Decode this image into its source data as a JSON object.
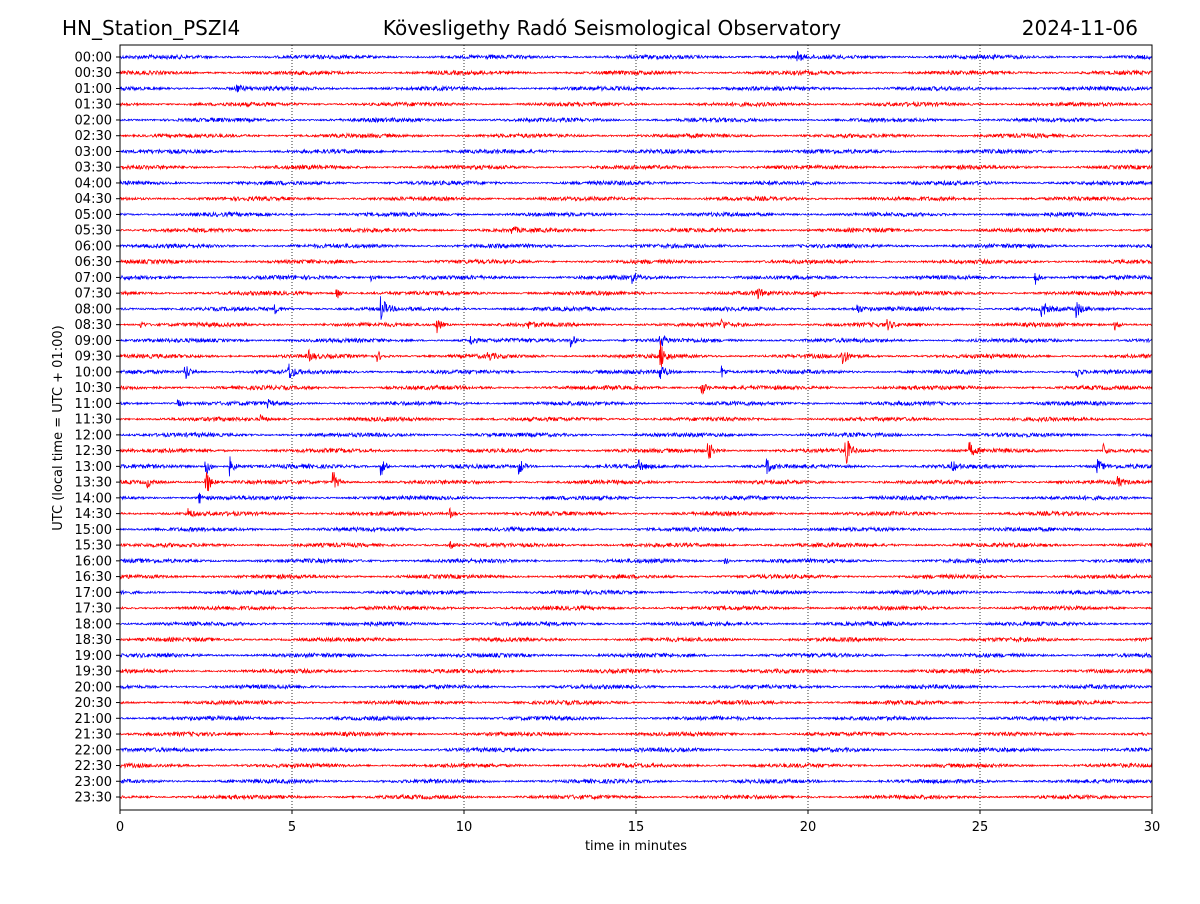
{
  "chart_data": {
    "type": "line",
    "title_left": "HN_Station_PSZI4",
    "title": "Kövesligethy Radó Seismological Observatory",
    "title_right": "2024-11-06",
    "xlabel": "time in minutes",
    "ylabel": "UTC (local time = UTC + 01:00)",
    "xlim": [
      0,
      30
    ],
    "xticks": [
      0,
      5,
      10,
      15,
      20,
      25,
      30
    ],
    "grid": "vertical dotted at 5-minute intervals",
    "row_labels": [
      "00:00",
      "00:30",
      "01:00",
      "01:30",
      "02:00",
      "02:30",
      "03:00",
      "03:30",
      "04:00",
      "04:30",
      "05:00",
      "05:30",
      "06:00",
      "06:30",
      "07:00",
      "07:30",
      "08:00",
      "08:30",
      "09:00",
      "09:30",
      "10:00",
      "10:30",
      "11:00",
      "11:30",
      "12:00",
      "12:30",
      "13:00",
      "13:30",
      "14:00",
      "14:30",
      "15:00",
      "15:30",
      "16:00",
      "16:30",
      "17:00",
      "17:30",
      "18:00",
      "18:30",
      "19:00",
      "19:30",
      "20:00",
      "20:30",
      "21:00",
      "21:30",
      "22:00",
      "22:30",
      "23:00",
      "23:30"
    ],
    "series_colors": [
      "#0000ff",
      "#ff0000"
    ],
    "noise_level": 0.09,
    "events": [
      {
        "row": 0,
        "minute": 19.7,
        "amp": 0.3
      },
      {
        "row": 2,
        "minute": 3.4,
        "amp": 0.25
      },
      {
        "row": 11,
        "minute": 11.4,
        "amp": 0.25
      },
      {
        "row": 14,
        "minute": 26.6,
        "amp": 0.5
      },
      {
        "row": 14,
        "minute": 14.9,
        "amp": 0.3
      },
      {
        "row": 14,
        "minute": 7.3,
        "amp": 0.25
      },
      {
        "row": 15,
        "minute": 6.3,
        "amp": 0.4
      },
      {
        "row": 15,
        "minute": 18.5,
        "amp": 0.4
      },
      {
        "row": 15,
        "minute": 20.2,
        "amp": 0.3
      },
      {
        "row": 15,
        "minute": 28.8,
        "amp": 0.3
      },
      {
        "row": 16,
        "minute": 7.6,
        "amp": 0.8
      },
      {
        "row": 16,
        "minute": 26.8,
        "amp": 0.6
      },
      {
        "row": 16,
        "minute": 27.8,
        "amp": 0.5
      },
      {
        "row": 16,
        "minute": 21.4,
        "amp": 0.4
      },
      {
        "row": 16,
        "minute": 4.5,
        "amp": 0.25
      },
      {
        "row": 17,
        "minute": 9.2,
        "amp": 0.6
      },
      {
        "row": 17,
        "minute": 17.5,
        "amp": 0.3
      },
      {
        "row": 17,
        "minute": 22.3,
        "amp": 0.3
      },
      {
        "row": 17,
        "minute": 28.9,
        "amp": 0.4
      },
      {
        "row": 17,
        "minute": 11.9,
        "amp": 0.2
      },
      {
        "row": 17,
        "minute": 0.6,
        "amp": 0.25
      },
      {
        "row": 18,
        "minute": 13.1,
        "amp": 0.5
      },
      {
        "row": 18,
        "minute": 10.2,
        "amp": 0.3
      },
      {
        "row": 18,
        "minute": 15.7,
        "amp": 0.5
      },
      {
        "row": 19,
        "minute": 5.5,
        "amp": 0.3
      },
      {
        "row": 19,
        "minute": 7.5,
        "amp": 0.3
      },
      {
        "row": 19,
        "minute": 10.7,
        "amp": 0.3
      },
      {
        "row": 19,
        "minute": 15.7,
        "amp": 1.0
      },
      {
        "row": 19,
        "minute": 21.0,
        "amp": 0.6
      },
      {
        "row": 20,
        "minute": 1.9,
        "amp": 0.6
      },
      {
        "row": 20,
        "minute": 4.9,
        "amp": 0.6
      },
      {
        "row": 20,
        "minute": 17.5,
        "amp": 0.4
      },
      {
        "row": 20,
        "minute": 27.8,
        "amp": 0.4
      },
      {
        "row": 20,
        "minute": 15.7,
        "amp": 0.6
      },
      {
        "row": 21,
        "minute": 16.9,
        "amp": 0.6
      },
      {
        "row": 22,
        "minute": 1.7,
        "amp": 0.2
      },
      {
        "row": 22,
        "minute": 4.3,
        "amp": 0.2
      },
      {
        "row": 23,
        "minute": 4.1,
        "amp": 0.25
      },
      {
        "row": 25,
        "minute": 17.1,
        "amp": 0.7
      },
      {
        "row": 25,
        "minute": 21.1,
        "amp": 1.0
      },
      {
        "row": 25,
        "minute": 24.7,
        "amp": 0.5
      },
      {
        "row": 25,
        "minute": 28.6,
        "amp": 0.4
      },
      {
        "row": 26,
        "minute": 3.2,
        "amp": 0.6
      },
      {
        "row": 26,
        "minute": 7.6,
        "amp": 0.6
      },
      {
        "row": 26,
        "minute": 11.6,
        "amp": 0.6
      },
      {
        "row": 26,
        "minute": 18.8,
        "amp": 0.5
      },
      {
        "row": 26,
        "minute": 28.4,
        "amp": 0.5
      },
      {
        "row": 26,
        "minute": 2.5,
        "amp": 0.6
      },
      {
        "row": 26,
        "minute": 15.1,
        "amp": 0.3
      },
      {
        "row": 26,
        "minute": 24.2,
        "amp": 0.3
      },
      {
        "row": 27,
        "minute": 2.5,
        "amp": 1.0
      },
      {
        "row": 27,
        "minute": 6.2,
        "amp": 0.7
      },
      {
        "row": 27,
        "minute": 29.0,
        "amp": 0.3
      },
      {
        "row": 27,
        "minute": 0.8,
        "amp": 0.3
      },
      {
        "row": 28,
        "minute": 2.3,
        "amp": 0.35
      },
      {
        "row": 29,
        "minute": 2.0,
        "amp": 0.3
      },
      {
        "row": 29,
        "minute": 9.6,
        "amp": 0.3
      },
      {
        "row": 31,
        "minute": 9.6,
        "amp": 0.25
      },
      {
        "row": 32,
        "minute": 17.6,
        "amp": 0.2
      },
      {
        "row": 43,
        "minute": 4.4,
        "amp": 0.2
      }
    ]
  }
}
